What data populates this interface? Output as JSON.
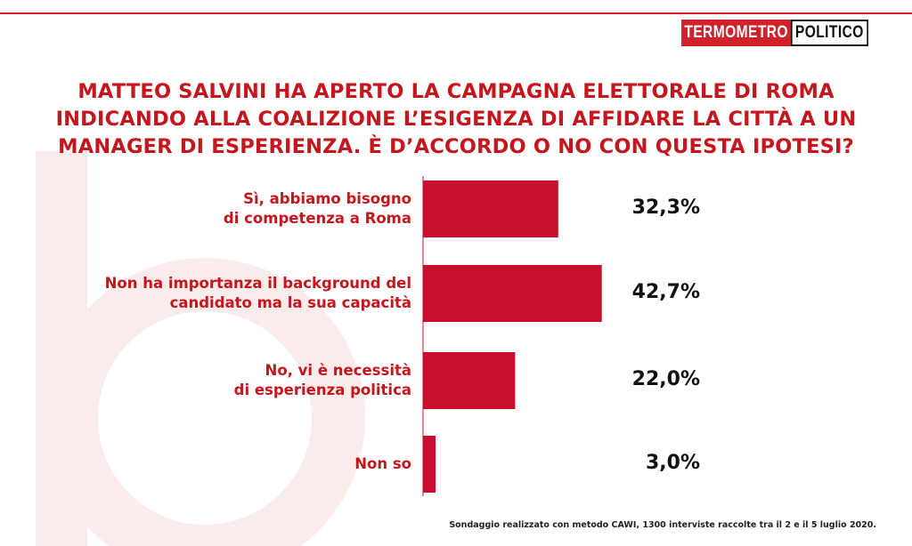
{
  "logo": {
    "part1": "TERMOMETRO",
    "part2": "POLITICO"
  },
  "title_lines": [
    "MATTEO SALVINI HA APERTO LA CAMPAGNA ELETTORALE DI ROMA",
    "INDICANDO ALLA COALIZIONE L’ESIGENZA DI AFFIDARE LA CITTÀ A UN",
    "MANAGER DI ESPERIENZA. È D’ACCORDO O NO CON QUESTA IPOTESI?"
  ],
  "chart_data": {
    "type": "bar",
    "orientation": "horizontal",
    "title": "MATTEO SALVINI HA APERTO LA CAMPAGNA ELETTORALE DI ROMA INDICANDO ALLA COALIZIONE L’ESIGENZA DI AFFIDARE LA CITTÀ A UN MANAGER DI ESPERIENZA. È D’ACCORDO O NO CON QUESTA IPOTESI?",
    "categories": [
      [
        "Sì, abbiamo bisogno",
        "di competenza a Roma"
      ],
      [
        "Non ha importanza il background del",
        "candidato ma la sua capacità"
      ],
      [
        "No, vi è necessità",
        "di esperienza politica"
      ],
      [
        "Non so"
      ]
    ],
    "values": [
      32.3,
      42.7,
      22.0,
      3.0
    ],
    "value_labels": [
      "32,3%",
      "42,7%",
      "22,0%",
      "3,0%"
    ],
    "bar_color": "#c8102e",
    "grid": false,
    "legend": "none"
  },
  "footnote": "Sondaggio realizzato con metodo CAWI, 1300 interviste raccolte tra il 2 e il 5 luglio 2020."
}
